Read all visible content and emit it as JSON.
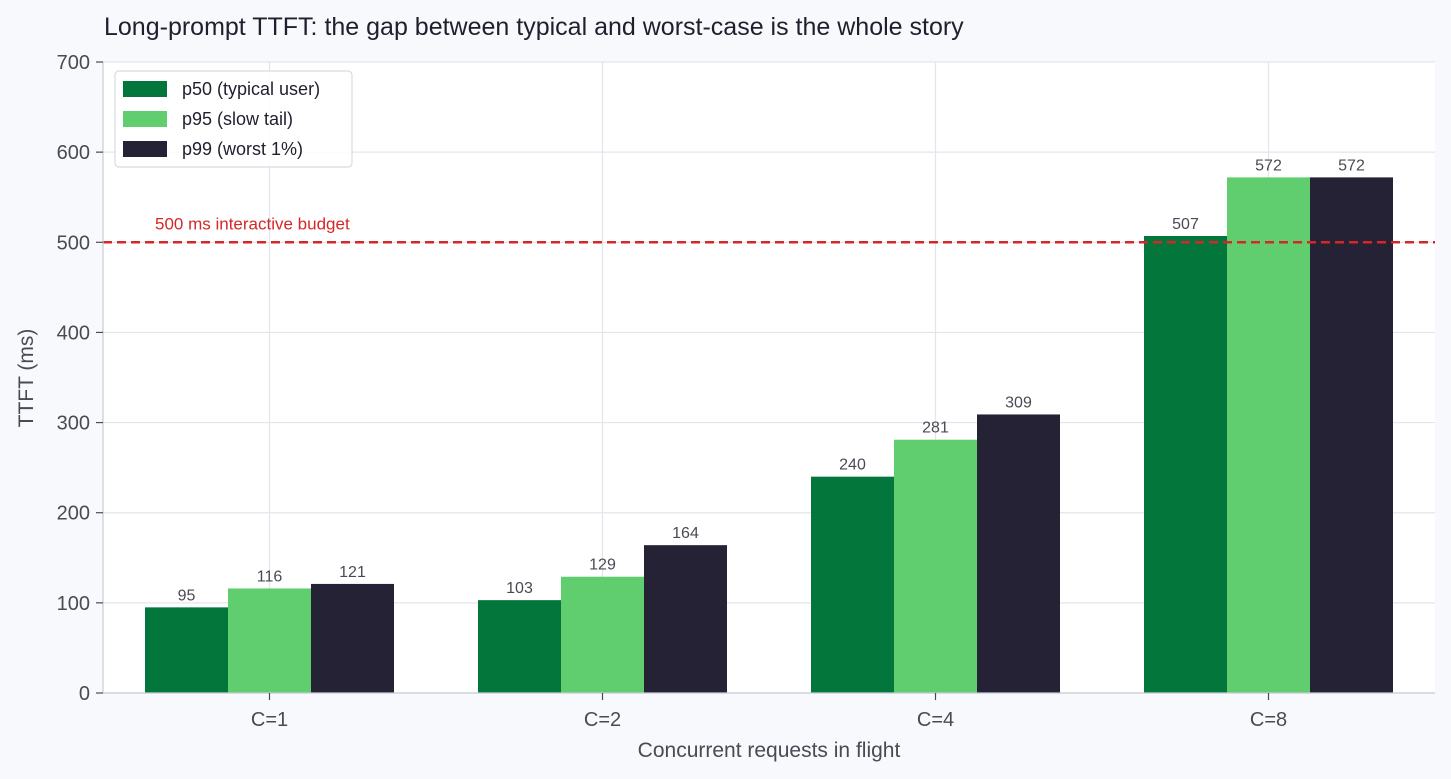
{
  "chart_data": {
    "type": "bar",
    "title": "Long-prompt TTFT: the gap between typical and worst-case is the whole story",
    "xlabel": "Concurrent requests in flight",
    "ylabel": "TTFT (ms)",
    "ylim": [
      0,
      700
    ],
    "yticks": [
      0,
      100,
      200,
      300,
      400,
      500,
      600,
      700
    ],
    "categories": [
      "C=1",
      "C=2",
      "C=4",
      "C=8"
    ],
    "grid": true,
    "legend_position": "top-left",
    "series": [
      {
        "name": "p50 (typical user)",
        "color": "#03763b",
        "values": [
          95,
          103,
          240,
          507
        ]
      },
      {
        "name": "p95 (slow tail)",
        "color": "#60ce6e",
        "values": [
          116,
          129,
          281,
          572
        ]
      },
      {
        "name": "p99 (worst 1%)",
        "color": "#242234",
        "values": [
          121,
          164,
          309,
          572
        ]
      }
    ],
    "reference_line": {
      "value": 500,
      "label": "500 ms interactive budget",
      "color": "#d62728",
      "style": "dashed"
    }
  }
}
